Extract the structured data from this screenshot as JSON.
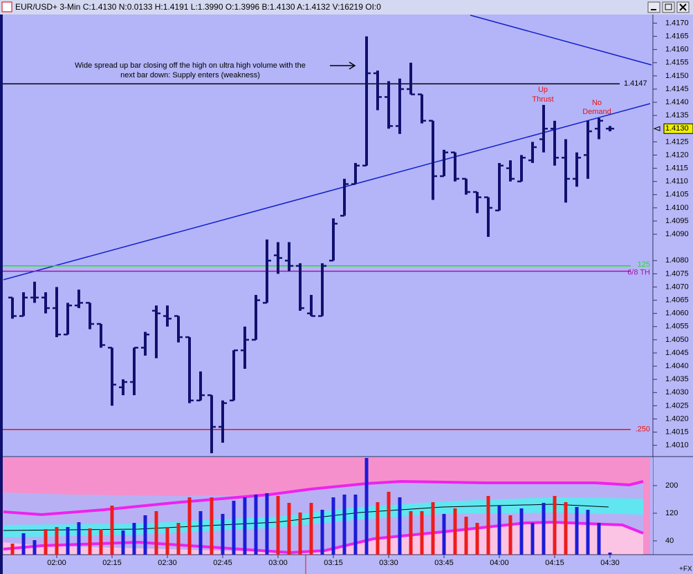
{
  "chart_data": [
    {
      "type": "ohlc",
      "title": "EUR/USD+ 3-Min C:1.4130 N:0.0133 H:1.4191 L:1.3990 O:1.3996 B:1.4130 A:1.4132 V:16219 OI:0",
      "categories": [
        null,
        null,
        null,
        null,
        "02:00",
        null,
        null,
        null,
        null,
        "02:15",
        null,
        null,
        null,
        null,
        "02:30",
        null,
        null,
        null,
        null,
        "02:45",
        null,
        null,
        null,
        null,
        "03:00",
        null,
        null,
        null,
        null,
        "03:15",
        null,
        null,
        null,
        null,
        "03:30",
        null,
        null,
        null,
        null,
        "03:45",
        null,
        null,
        null,
        null,
        "04:00",
        null,
        null,
        null,
        null,
        "04:15",
        null,
        null,
        null,
        null,
        "04:30"
      ],
      "open": [
        1.4066,
        1.4059,
        1.4066,
        1.4066,
        1.4062,
        1.4052,
        1.4063,
        1.4064,
        1.4056,
        1.4047,
        1.4032,
        1.4034,
        1.4047,
        1.4061,
        1.4059,
        1.4059,
        1.4051,
        1.4027,
        1.4029,
        1.4017,
        1.4027,
        1.4046,
        1.405,
        1.4064,
        1.4082,
        1.408,
        1.4078,
        1.406,
        1.4059,
        1.408,
        1.4097,
        1.4109,
        1.4116,
        1.4151,
        1.4142,
        1.4131,
        1.4145,
        1.4143,
        1.4133,
        1.4112,
        1.4121,
        1.4111,
        1.4106,
        1.4104,
        1.4099,
        1.4115,
        1.411,
        1.4118,
        1.4126,
        1.413,
        1.4119,
        1.4111,
        1.412,
        1.413,
        1.413
      ],
      "high": [
        1.4066,
        1.4068,
        1.4072,
        1.4068,
        1.407,
        1.4064,
        1.4069,
        1.4064,
        1.4056,
        1.4047,
        1.4035,
        1.4047,
        1.4053,
        1.4063,
        1.4063,
        1.4059,
        1.4051,
        1.4038,
        1.4029,
        1.4027,
        1.4046,
        1.4055,
        1.4067,
        1.4088,
        1.4087,
        1.4087,
        1.4079,
        1.4067,
        1.4079,
        1.4096,
        1.4111,
        1.4117,
        1.4165,
        1.4152,
        1.4148,
        1.4149,
        1.4155,
        1.4143,
        1.4133,
        1.4122,
        1.4121,
        1.4111,
        1.4106,
        1.4104,
        1.4117,
        1.4118,
        1.412,
        1.4125,
        1.4139,
        1.4133,
        1.4126,
        1.4121,
        1.4133,
        1.4134,
        1.4131
      ],
      "low": [
        1.4058,
        1.4059,
        1.4064,
        1.406,
        1.4051,
        1.4052,
        1.4062,
        1.4054,
        1.4047,
        1.4025,
        1.4029,
        1.4029,
        1.4044,
        1.4043,
        1.4055,
        1.4049,
        1.4026,
        1.4027,
        1.4007,
        1.4011,
        1.4027,
        1.4039,
        1.405,
        1.4064,
        1.4075,
        1.4076,
        1.4061,
        1.4059,
        1.4059,
        1.408,
        1.4097,
        1.4109,
        1.4116,
        1.4137,
        1.413,
        1.4128,
        1.4143,
        1.4132,
        1.4103,
        1.4112,
        1.411,
        1.4105,
        1.4098,
        1.4089,
        1.4099,
        1.411,
        1.411,
        1.4117,
        1.4121,
        1.4116,
        1.4102,
        1.4108,
        1.4111,
        1.4126,
        1.4129
      ],
      "close": [
        1.4059,
        1.4066,
        1.4066,
        1.4062,
        1.4052,
        1.4063,
        1.4064,
        1.4056,
        1.4048,
        1.4033,
        1.4034,
        1.4047,
        1.4052,
        1.406,
        1.4058,
        1.4051,
        1.4027,
        1.4029,
        1.4017,
        1.4026,
        1.4046,
        1.405,
        1.4065,
        1.408,
        1.4081,
        1.4078,
        1.4062,
        1.4059,
        1.4078,
        1.4094,
        1.4109,
        1.4116,
        1.4151,
        1.4142,
        1.4131,
        1.4145,
        1.4143,
        1.4133,
        1.4112,
        1.4121,
        1.4111,
        1.4106,
        1.4104,
        1.41,
        1.4116,
        1.4111,
        1.4119,
        1.4123,
        1.413,
        1.4119,
        1.4111,
        1.4119,
        1.4129,
        1.4133,
        1.413
      ],
      "color": "#10106e",
      "ylim": [
        1.4006,
        1.4173
      ],
      "yticks": [
        {
          "value": 1.401,
          "label": "1.4010"
        },
        {
          "value": 1.4015,
          "label": "1.4015"
        },
        {
          "value": 1.402,
          "label": "1.4020"
        },
        {
          "value": 1.4025,
          "label": "1.4025"
        },
        {
          "value": 1.403,
          "label": "1.4030"
        },
        {
          "value": 1.4035,
          "label": "1.4035"
        },
        {
          "value": 1.404,
          "label": "1.4040"
        },
        {
          "value": 1.4045,
          "label": "1.4045"
        },
        {
          "value": 1.405,
          "label": "1.4050"
        },
        {
          "value": 1.4055,
          "label": "1.4055"
        },
        {
          "value": 1.406,
          "label": "1.4060"
        },
        {
          "value": 1.4065,
          "label": "1.4065"
        },
        {
          "value": 1.407,
          "label": "1.4070"
        },
        {
          "value": 1.4075,
          "label": "1.4075"
        },
        {
          "value": 1.408,
          "label": "1.4080"
        },
        {
          "value": 1.409,
          "label": "1.4090"
        },
        {
          "value": 1.4095,
          "label": "1.4095"
        },
        {
          "value": 1.41,
          "label": "1.4100"
        },
        {
          "value": 1.4105,
          "label": "1.4105"
        },
        {
          "value": 1.411,
          "label": "1.4110"
        },
        {
          "value": 1.4115,
          "label": "1.4115"
        },
        {
          "value": 1.412,
          "label": "1.4120"
        },
        {
          "value": 1.4125,
          "label": "1.4125"
        },
        {
          "value": 1.4135,
          "label": "1.4135"
        },
        {
          "value": 1.414,
          "label": "1.4140"
        },
        {
          "value": 1.4145,
          "label": "1.4145"
        },
        {
          "value": 1.415,
          "label": "1.4150"
        },
        {
          "value": 1.4155,
          "label": "1.4155"
        },
        {
          "value": 1.416,
          "label": "1.4160"
        },
        {
          "value": 1.4165,
          "label": "1.4165"
        },
        {
          "value": 1.417,
          "label": "1.4170"
        }
      ],
      "levels": [
        {
          "value": 1.4147,
          "label": "1.4147",
          "color": "#000000"
        },
        {
          "value": 1.4078,
          "label": "125",
          "color": "#22dd22"
        },
        {
          "value": 1.4076,
          "label": "6/8 TH",
          "color": "#aa10aa"
        },
        {
          "value": 1.4016,
          "label": ".250",
          "color": "#ee1111"
        }
      ],
      "last_price": {
        "value": 1.413,
        "label": "1.4130"
      },
      "annotations": [
        {
          "text": "Wide spread up bar closing off the high on ultra high volume with the",
          "color": "#000000"
        },
        {
          "text": "next bar down: Supply enters (weakness)",
          "color": "#000000"
        },
        {
          "text": "Up",
          "color": "#ee1111"
        },
        {
          "text": "Thrust",
          "color": "#ee1111"
        },
        {
          "text": "No",
          "color": "#ee1111"
        },
        {
          "text": "Demand",
          "color": "#ee1111"
        }
      ]
    },
    {
      "type": "bar",
      "values": [
        32,
        62,
        42,
        74,
        80,
        80,
        94,
        76,
        74,
        142,
        70,
        92,
        114,
        126,
        80,
        92,
        166,
        126,
        166,
        118,
        156,
        166,
        174,
        178,
        170,
        150,
        122,
        150,
        130,
        166,
        174,
        174,
        280,
        152,
        182,
        166,
        126,
        126,
        152,
        118,
        134,
        110,
        92,
        170,
        142,
        114,
        134,
        92,
        150,
        170,
        152,
        138,
        130,
        92,
        6
      ],
      "up_color": "#1c1cd8",
      "down_color": "#ee1c1c",
      "ylim": [
        0,
        280
      ],
      "yticks": [
        40,
        120,
        200
      ],
      "footer": "+FX"
    }
  ]
}
